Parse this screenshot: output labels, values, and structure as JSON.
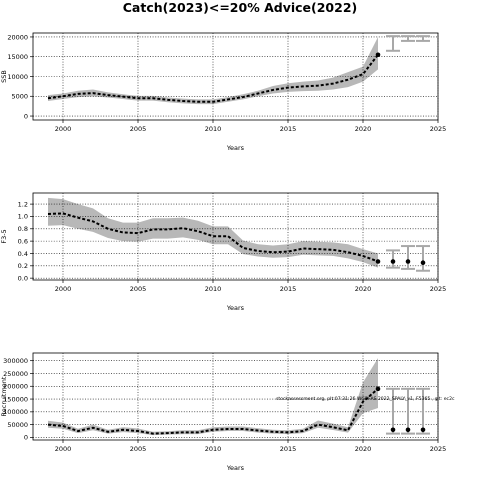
{
  "title": "Catch(2023)<=20% Advice(2022)",
  "chart_data": [
    {
      "type": "area",
      "ylabel": "SSB",
      "xlabel": "Years",
      "xlim": [
        1998,
        2025
      ],
      "ylim": [
        -1000,
        21000
      ],
      "xticks": [
        2000,
        2005,
        2010,
        2015,
        2020,
        2025
      ],
      "yticks": [
        0,
        5000,
        10000,
        15000,
        20000
      ],
      "grid": true,
      "x": [
        1999,
        2000,
        2001,
        2002,
        2003,
        2004,
        2005,
        2006,
        2007,
        2008,
        2009,
        2010,
        2011,
        2012,
        2013,
        2014,
        2015,
        2016,
        2017,
        2018,
        2019,
        2020,
        2021
      ],
      "series": [
        {
          "values": [
            4500,
            5000,
            5600,
            5800,
            5300,
            4900,
            4500,
            4500,
            4100,
            3800,
            3600,
            3600,
            4200,
            4800,
            5700,
            6600,
            7200,
            7500,
            7700,
            8200,
            9200,
            10600,
            15500
          ]
        }
      ],
      "band": {
        "lower": [
          3800,
          4300,
          4800,
          5000,
          4700,
          4300,
          3900,
          3900,
          3500,
          3200,
          3000,
          3000,
          3600,
          4200,
          5000,
          5700,
          6100,
          6300,
          6400,
          6700,
          7300,
          8700,
          11800
        ],
        "upper": [
          5300,
          5700,
          6400,
          6700,
          6000,
          5500,
          5100,
          5100,
          4700,
          4400,
          4200,
          4200,
          4800,
          5500,
          6400,
          7600,
          8300,
          8700,
          9000,
          9700,
          11100,
          12500,
          20000
        ]
      },
      "projections": [
        {
          "x": 2022,
          "low": 16500,
          "high": 20200
        },
        {
          "x": 2023,
          "low": 19000,
          "high": 20200
        },
        {
          "x": 2024,
          "low": 19000,
          "high": 20200
        }
      ]
    },
    {
      "type": "area",
      "ylabel": "F3-5",
      "xlabel": "Years",
      "xlim": [
        1998,
        2025
      ],
      "ylim": [
        -0.03,
        1.38
      ],
      "xticks": [
        2000,
        2005,
        2010,
        2015,
        2020,
        2025
      ],
      "yticks": [
        0.0,
        0.2,
        0.4,
        0.6,
        0.8,
        1.0,
        1.2
      ],
      "grid": true,
      "x": [
        1999,
        2000,
        2001,
        2002,
        2003,
        2004,
        2005,
        2006,
        2007,
        2008,
        2009,
        2010,
        2011,
        2012,
        2013,
        2014,
        2015,
        2016,
        2017,
        2018,
        2019,
        2020,
        2021
      ],
      "series": [
        {
          "values": [
            1.04,
            1.05,
            0.98,
            0.92,
            0.8,
            0.74,
            0.73,
            0.79,
            0.79,
            0.81,
            0.76,
            0.68,
            0.68,
            0.49,
            0.44,
            0.42,
            0.43,
            0.48,
            0.47,
            0.46,
            0.42,
            0.36,
            0.27
          ]
        }
      ],
      "band": {
        "lower": [
          0.85,
          0.86,
          0.8,
          0.75,
          0.65,
          0.6,
          0.59,
          0.64,
          0.64,
          0.66,
          0.62,
          0.55,
          0.55,
          0.39,
          0.35,
          0.33,
          0.34,
          0.38,
          0.37,
          0.36,
          0.32,
          0.26,
          0.17
        ],
        "upper": [
          1.3,
          1.28,
          1.2,
          1.13,
          0.97,
          0.9,
          0.9,
          0.97,
          0.97,
          0.98,
          0.93,
          0.84,
          0.84,
          0.61,
          0.55,
          0.53,
          0.55,
          0.6,
          0.59,
          0.58,
          0.55,
          0.47,
          0.4
        ]
      },
      "points": [
        {
          "x": 2021,
          "y": 0.27
        },
        {
          "x": 2022,
          "y": 0.27
        },
        {
          "x": 2023,
          "y": 0.27
        },
        {
          "x": 2024,
          "y": 0.25
        }
      ],
      "projections": [
        {
          "x": 2022,
          "low": 0.17,
          "high": 0.45
        },
        {
          "x": 2023,
          "low": 0.15,
          "high": 0.52
        },
        {
          "x": 2024,
          "low": 0.12,
          "high": 0.52
        }
      ]
    },
    {
      "type": "area",
      "ylabel": "Recruitment",
      "xlabel": "Years",
      "xlim": [
        1998,
        2025
      ],
      "ylim": [
        -10000,
        330000
      ],
      "xticks": [
        2000,
        2005,
        2010,
        2015,
        2020,
        2025
      ],
      "yticks": [
        0,
        50000,
        100000,
        150000,
        200000,
        250000,
        300000
      ],
      "grid": true,
      "annotation": "stockassessment.org, plt:07:31:26 WGBFAS 2022_SPALY_v1, F5365 , git: ec2c",
      "x": [
        1999,
        2000,
        2001,
        2002,
        2003,
        2004,
        2005,
        2006,
        2007,
        2008,
        2009,
        2010,
        2011,
        2012,
        2013,
        2014,
        2015,
        2016,
        2017,
        2018,
        2019,
        2020,
        2021
      ],
      "series": [
        {
          "values": [
            50000,
            45000,
            25000,
            38000,
            22000,
            30000,
            25000,
            15000,
            17000,
            20000,
            20000,
            30000,
            33000,
            33000,
            27000,
            22000,
            20000,
            25000,
            50000,
            40000,
            28000,
            140000,
            190000
          ]
        }
      ],
      "band": {
        "lower": [
          38000,
          34000,
          17000,
          28000,
          15000,
          21000,
          17000,
          9000,
          11000,
          13000,
          13000,
          22000,
          25000,
          25000,
          19000,
          15000,
          13000,
          17000,
          38000,
          29000,
          19000,
          95000,
          115000
        ],
        "upper": [
          65000,
          58000,
          34000,
          50000,
          30000,
          40000,
          35000,
          22000,
          24000,
          28000,
          28000,
          40000,
          43000,
          43000,
          36000,
          30000,
          28000,
          34000,
          66000,
          54000,
          40000,
          215000,
          310000
        ]
      },
      "points": [
        {
          "x": 2021,
          "y": 190000
        },
        {
          "x": 2022,
          "y": 30000
        },
        {
          "x": 2023,
          "y": 30000
        },
        {
          "x": 2024,
          "y": 30000
        }
      ],
      "projections": [
        {
          "x": 2022,
          "low": 15000,
          "high": 190000
        },
        {
          "x": 2023,
          "low": 15000,
          "high": 190000
        },
        {
          "x": 2024,
          "low": 15000,
          "high": 190000
        }
      ]
    }
  ]
}
